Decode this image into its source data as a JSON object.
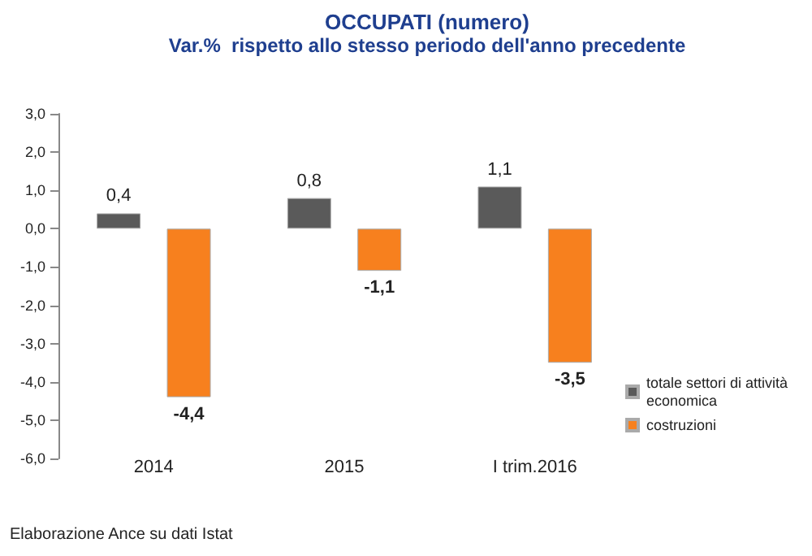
{
  "chart_data": {
    "type": "bar",
    "title": "OCCUPATI (numero)",
    "subtitle": "Var.%  rispetto allo stesso periodo dell'anno precedente",
    "categories": [
      "2014",
      "2015",
      "I trim.2016"
    ],
    "series": [
      {
        "name": "totale settori di attività economica",
        "color": "#5a5a5a",
        "values": [
          0.4,
          0.8,
          1.1
        ],
        "value_labels": [
          "0,4",
          "0,8",
          "1,1"
        ]
      },
      {
        "name": "costruzioni",
        "color": "#f7801e",
        "values": [
          -4.4,
          -1.1,
          -3.5
        ],
        "value_labels": [
          "-4,4",
          "-1,1",
          "-3,5"
        ]
      }
    ],
    "ylim": [
      -6,
      3
    ],
    "yticks": [
      {
        "value": -6,
        "label": "-6,0"
      },
      {
        "value": -5,
        "label": "-5,0"
      },
      {
        "value": -4,
        "label": "-4,0"
      },
      {
        "value": -3,
        "label": "-3,0"
      },
      {
        "value": -2,
        "label": "-2,0"
      },
      {
        "value": -1,
        "label": "-1,0"
      },
      {
        "value": 0,
        "label": "0,0"
      },
      {
        "value": 1,
        "label": "1,0"
      },
      {
        "value": 2,
        "label": "2,0"
      },
      {
        "value": 3,
        "label": "3,0"
      }
    ],
    "grid": false,
    "legend": "right",
    "annotations": [
      "Elaborazione Ance su dati Istat"
    ]
  }
}
